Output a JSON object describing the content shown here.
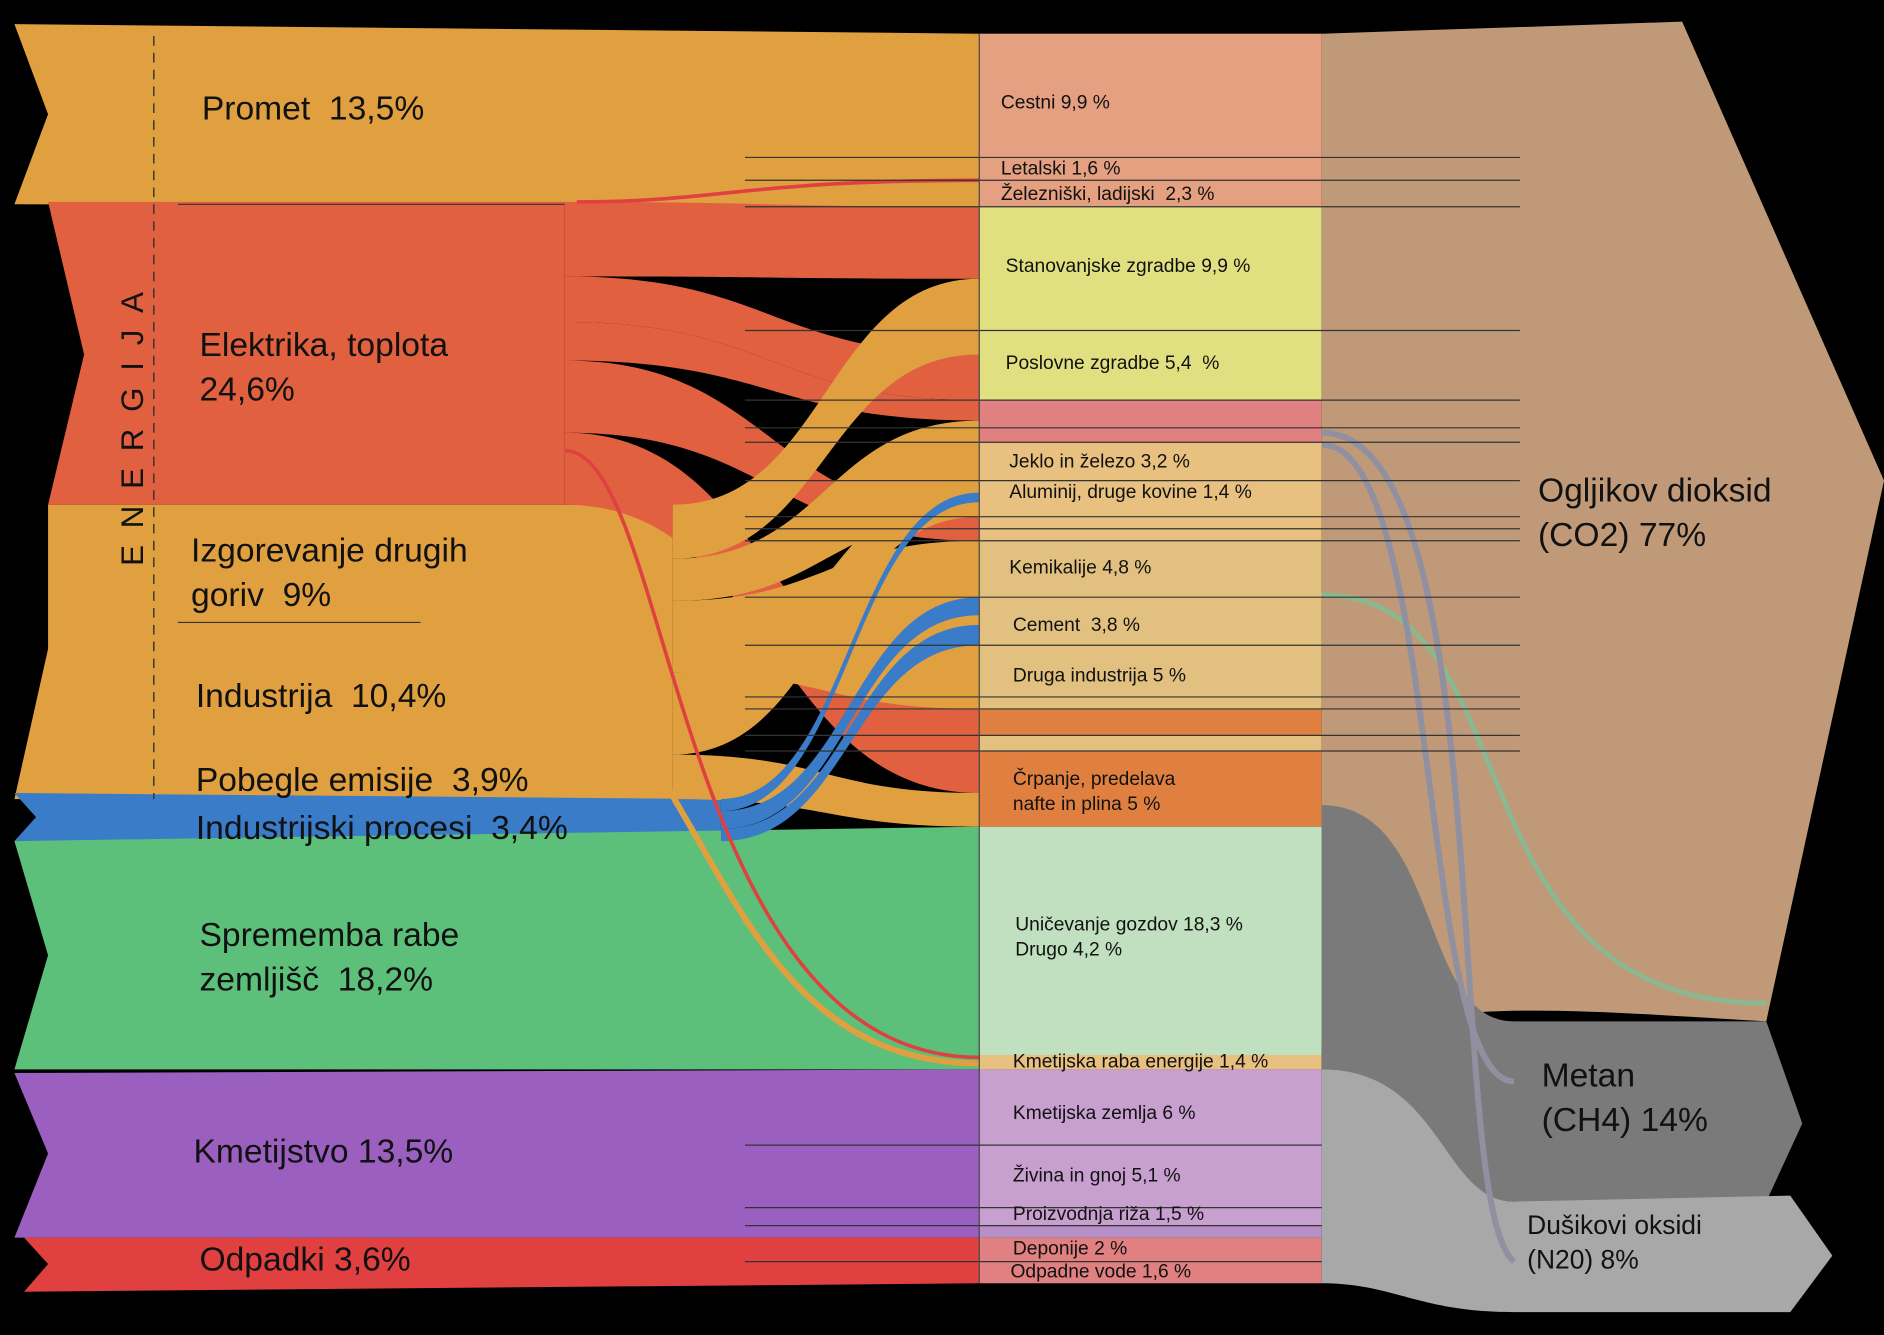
{
  "energy_label": "ENERGIJA",
  "sources": [
    [
      "Promet  13,5%"
    ],
    [
      "Elektrika, toplota",
      "24,6%"
    ],
    [
      "Izgorevanje drugih",
      "goriv  9%"
    ],
    [
      "Industrija  10,4%"
    ],
    [
      "Pobegle emisije  3,9%"
    ],
    [
      "Industrijski procesi  3,4%"
    ],
    [
      "Sprememba rabe",
      "zemljišč  18,2%"
    ],
    [
      "Kmetijstvo 13,5%"
    ],
    [
      "Odpadki 3,6%"
    ]
  ],
  "subsectors": [
    [
      "Cestni 9,9 %"
    ],
    [
      "Letalski 1,6 %"
    ],
    [
      "Železniški, ladijski  2,3 %"
    ],
    [
      "Stanovanjske zgradbe 9,9 %"
    ],
    [
      "Poslovne zgradbe 5,4  %"
    ],
    [
      "Jeklo in železo 3,2 %"
    ],
    [
      "Aluminij, druge kovine 1,4 %"
    ],
    [
      "Kemikalije 4,8 %"
    ],
    [
      "Cement  3,8 %"
    ],
    [
      "Druga industrija 5 %"
    ],
    [
      "Črpanje, predelava",
      "nafte in plina 5 %"
    ],
    [
      "Uničevanje gozdov 18,3 %",
      "Drugo 4,2 %"
    ],
    [
      "Kmetijska raba energije 1,4 %"
    ],
    [
      "Kmetijska zemlja 6 %"
    ],
    [
      "Živina in gnoj 5,1 %"
    ],
    [
      "Proizvodnja riža 1,5 %"
    ],
    [
      "Deponije 2 %"
    ],
    [
      "Odpadne vode 1,6 %"
    ]
  ],
  "gases": [
    [
      "Ogljikov dioksid",
      "(CO2) 77%"
    ],
    [
      "Metan",
      "(CH4) 14%"
    ],
    [
      "Dušikovi oksidi",
      "(N20) 8%"
    ]
  ]
}
